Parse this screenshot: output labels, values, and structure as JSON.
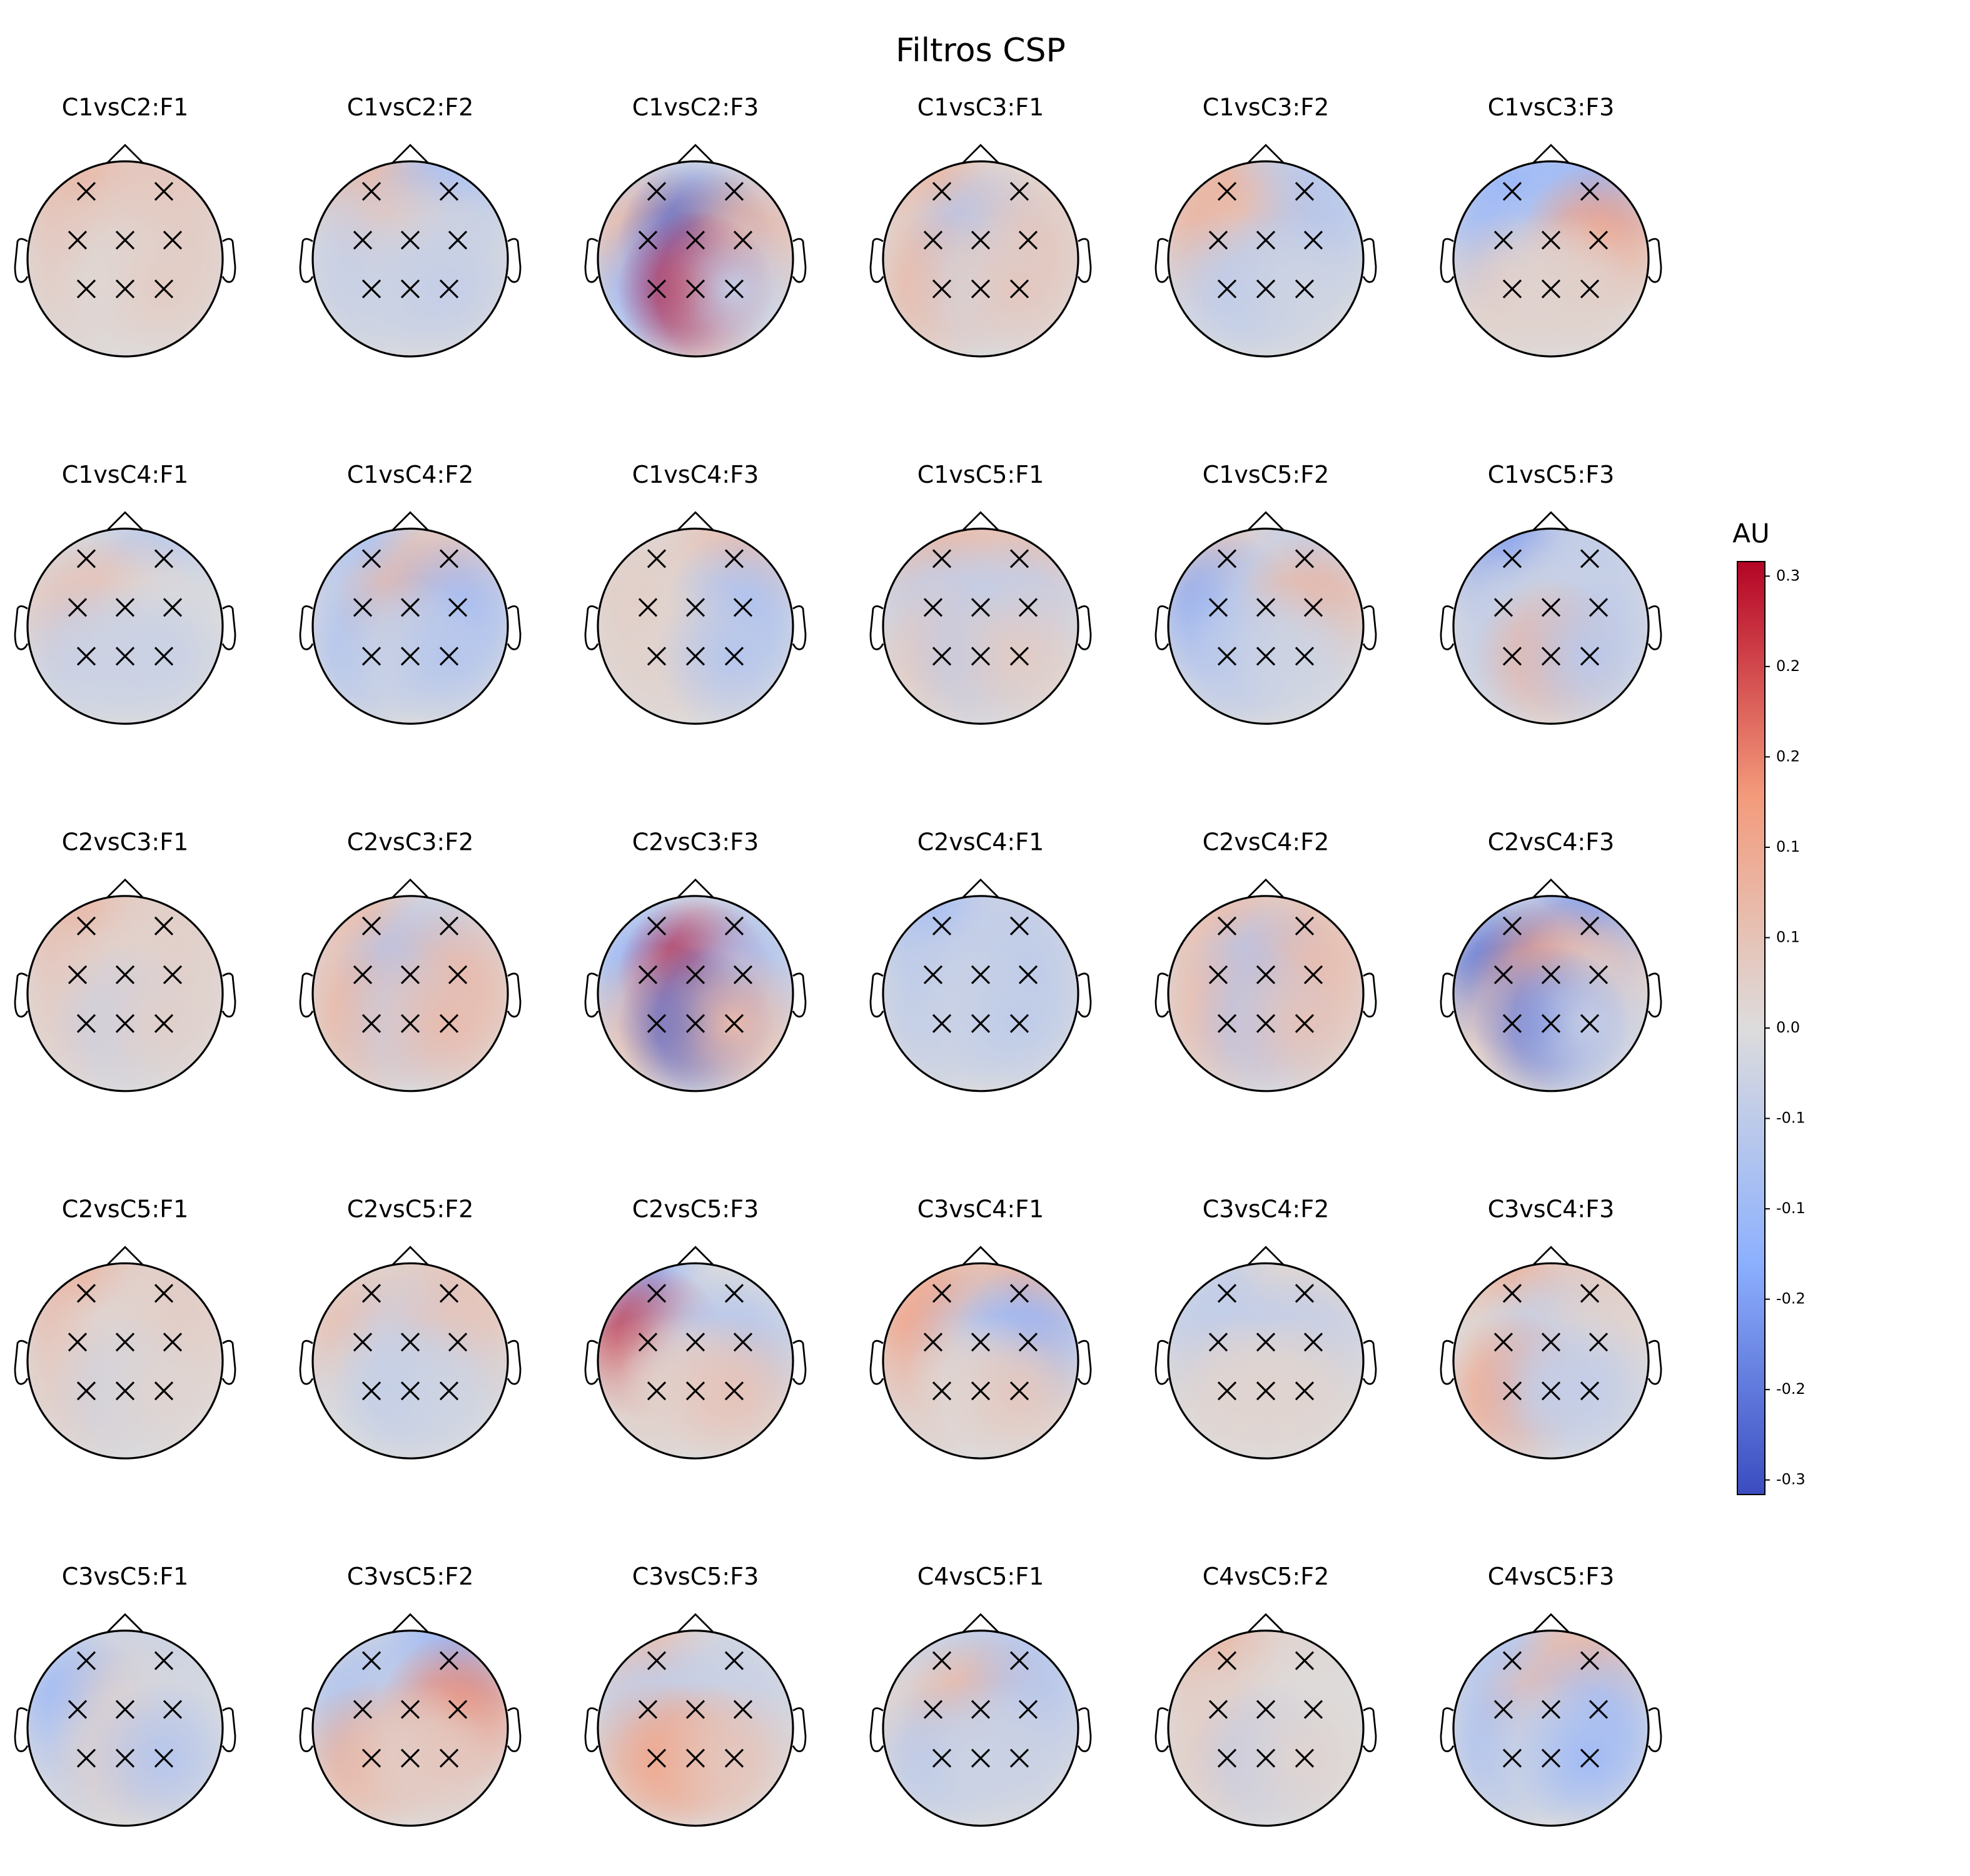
{
  "chart_data": {
    "type": "topomap",
    "title": "Filtros CSP",
    "colorbar_label": "AU",
    "colormap": "coolwarm",
    "clim": [
      -0.32,
      0.32
    ],
    "cticks": [
      {
        "value": 0.31,
        "label": "0.3"
      },
      {
        "value": 0.248,
        "label": "0.2"
      },
      {
        "value": 0.186,
        "label": "0.2"
      },
      {
        "value": 0.124,
        "label": "0.1"
      },
      {
        "value": 0.062,
        "label": "0.1"
      },
      {
        "value": 0,
        "label": "0.0"
      },
      {
        "value": -0.062,
        "label": "-0.1"
      },
      {
        "value": -0.124,
        "label": "-0.1"
      },
      {
        "value": -0.186,
        "label": "-0.2"
      },
      {
        "value": -0.248,
        "label": "-0.2"
      },
      {
        "value": -0.31,
        "label": "-0.3"
      }
    ],
    "maps": [
      {
        "title": "C1vsC2:F1",
        "values": [
          0.1,
          0.06,
          0.05,
          0.03,
          0.04,
          0.04,
          0.0,
          0.04
        ]
      },
      {
        "title": "C1vsC2:F2",
        "values": [
          0.1,
          -0.12,
          -0.04,
          0.05,
          -0.03,
          -0.05,
          -0.03,
          -0.05
        ]
      },
      {
        "title": "C1vsC2:F3",
        "values": [
          -0.05,
          -0.05,
          0.1,
          -0.3,
          0.1,
          -0.15,
          0.3,
          -0.05
        ]
      },
      {
        "title": "C1vsC3:F1",
        "values": [
          0.1,
          0.02,
          0.04,
          -0.1,
          0.05,
          0.1,
          -0.02,
          0.05
        ]
      },
      {
        "title": "C1vsC3:F2",
        "values": [
          0.1,
          -0.08,
          0.1,
          0.06,
          -0.08,
          -0.05,
          -0.06,
          -0.03
        ]
      },
      {
        "title": "C1vsC3:F3",
        "values": [
          -0.15,
          -0.15,
          -0.12,
          -0.08,
          0.15,
          0.04,
          0.02,
          0.03
        ]
      },
      {
        "title": "C1vsC4:F1",
        "values": [
          -0.02,
          -0.08,
          0.06,
          0.06,
          0.0,
          -0.05,
          -0.03,
          -0.04
        ]
      },
      {
        "title": "C1vsC4:F2",
        "values": [
          -0.1,
          0.06,
          -0.06,
          0.1,
          -0.12,
          -0.1,
          -0.02,
          -0.08
        ]
      },
      {
        "title": "C1vsC4:F3",
        "values": [
          0.02,
          0.08,
          0.04,
          0.02,
          -0.1,
          0.03,
          0.02,
          -0.08
        ]
      },
      {
        "title": "C1vsC5:F1",
        "values": [
          0.1,
          0.08,
          -0.05,
          -0.05,
          -0.05,
          0.05,
          -0.06,
          0.04
        ]
      },
      {
        "title": "C1vsC5:F2",
        "values": [
          0.05,
          -0.05,
          -0.18,
          -0.03,
          0.1,
          -0.08,
          -0.05,
          -0.03
        ]
      },
      {
        "title": "C1vsC5:F3",
        "values": [
          -0.2,
          -0.06,
          -0.05,
          -0.03,
          -0.05,
          -0.05,
          0.1,
          -0.07
        ]
      },
      {
        "title": "C2vsC3:F1",
        "values": [
          0.1,
          0.04,
          0.05,
          0.02,
          0.03,
          0.04,
          -0.04,
          0.03
        ]
      },
      {
        "title": "C2vsC3:F2",
        "values": [
          0.08,
          -0.04,
          0.06,
          -0.1,
          0.08,
          0.1,
          -0.04,
          0.08
        ]
      },
      {
        "title": "C2vsC3:F3",
        "values": [
          -0.05,
          -0.05,
          -0.15,
          0.3,
          -0.1,
          0.08,
          -0.3,
          0.08
        ]
      },
      {
        "title": "C2vsC4:F1",
        "values": [
          -0.12,
          -0.05,
          -0.06,
          -0.04,
          -0.06,
          -0.06,
          -0.03,
          -0.06
        ]
      },
      {
        "title": "C2vsC4:F2",
        "values": [
          0.08,
          0.06,
          0.06,
          -0.1,
          0.08,
          0.08,
          -0.08,
          0.06
        ]
      },
      {
        "title": "C2vsC4:F3",
        "values": [
          -0.05,
          -0.2,
          -0.28,
          0.15,
          0.05,
          0.05,
          -0.25,
          -0.05
        ]
      },
      {
        "title": "C2vsC5:F1",
        "values": [
          0.1,
          0.04,
          0.06,
          0.0,
          0.04,
          0.04,
          -0.03,
          0.02
        ]
      },
      {
        "title": "C2vsC5:F2",
        "values": [
          0.03,
          0.06,
          0.08,
          -0.04,
          0.06,
          -0.02,
          -0.06,
          -0.03
        ]
      },
      {
        "title": "C2vsC5:F3",
        "values": [
          -0.15,
          0.0,
          0.28,
          -0.05,
          -0.08,
          0.04,
          0.02,
          0.06
        ]
      },
      {
        "title": "C3vsC4:F1",
        "values": [
          0.1,
          0.1,
          0.15,
          -0.06,
          -0.15,
          0.05,
          0.0,
          0.05
        ]
      },
      {
        "title": "C3vsC4:F2",
        "values": [
          -0.05,
          0.02,
          -0.06,
          -0.05,
          -0.05,
          0.02,
          0.02,
          0.02
        ]
      },
      {
        "title": "C3vsC4:F3",
        "values": [
          0.12,
          0.05,
          0.0,
          -0.06,
          0.02,
          0.15,
          -0.05,
          -0.05
        ]
      },
      {
        "title": "C3vsC5:F1",
        "values": [
          -0.04,
          -0.04,
          -0.15,
          0.03,
          -0.02,
          -0.05,
          0.03,
          -0.08
        ]
      },
      {
        "title": "C3vsC5:F2",
        "values": [
          -0.05,
          -0.15,
          -0.1,
          -0.05,
          0.18,
          0.12,
          0.03,
          0.05
        ]
      },
      {
        "title": "C3vsC5:F3",
        "values": [
          0.08,
          -0.03,
          -0.06,
          -0.05,
          -0.04,
          0.12,
          0.12,
          0.05
        ]
      },
      {
        "title": "C4vsC5:F1",
        "values": [
          -0.05,
          -0.08,
          0.03,
          0.1,
          -0.08,
          -0.08,
          -0.03,
          -0.04
        ]
      },
      {
        "title": "C4vsC5:F2",
        "values": [
          0.1,
          0.02,
          0.03,
          0.02,
          0.0,
          0.04,
          -0.05,
          0.02
        ]
      },
      {
        "title": "C4vsC5:F3",
        "values": [
          -0.08,
          0.1,
          -0.08,
          0.08,
          -0.1,
          -0.1,
          -0.02,
          -0.12
        ]
      }
    ]
  }
}
